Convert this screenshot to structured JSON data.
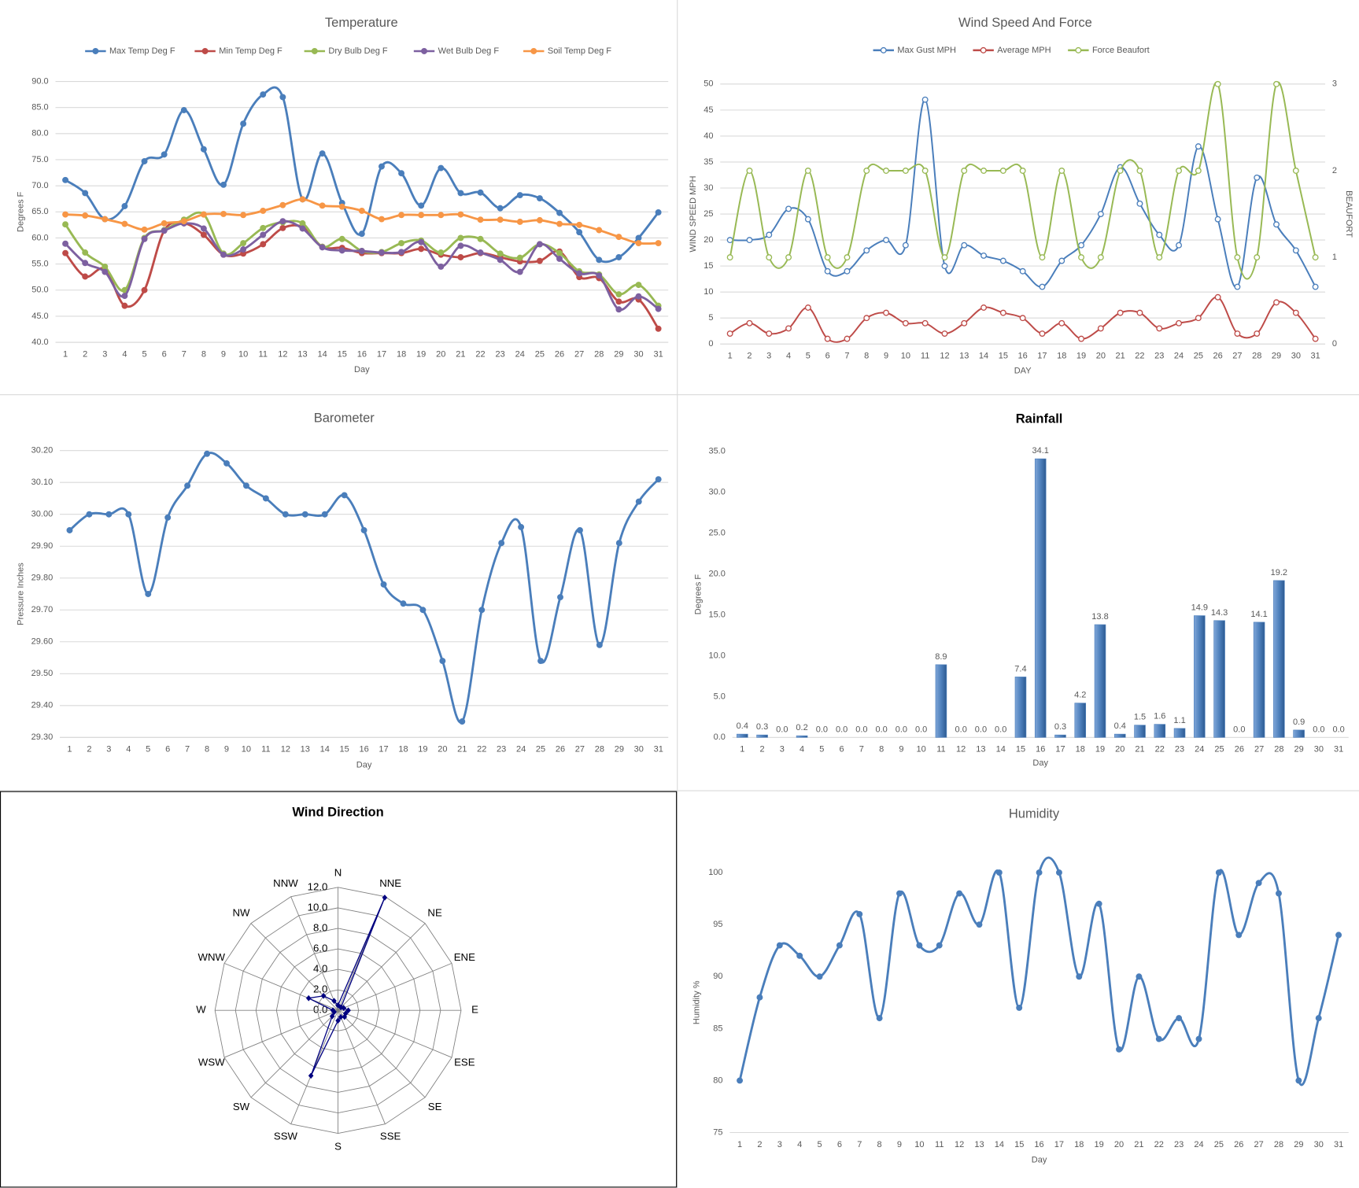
{
  "chart_data": [
    {
      "type": "line",
      "title": "Temperature",
      "x_label": "Day",
      "y_label": "Degrees F",
      "legend": "top",
      "grid": true,
      "smooth": true,
      "markers": "filled",
      "categories": [
        1,
        2,
        3,
        4,
        5,
        6,
        7,
        8,
        9,
        10,
        11,
        12,
        13,
        14,
        15,
        16,
        17,
        18,
        19,
        20,
        21,
        22,
        23,
        24,
        25,
        26,
        27,
        28,
        29,
        30,
        31
      ],
      "ylim": [
        40,
        90
      ],
      "yticks": [
        {
          "value": 40,
          "label": "40.0"
        },
        {
          "value": 45,
          "label": "45.0"
        },
        {
          "value": 50,
          "label": "50.0"
        },
        {
          "value": 55,
          "label": "55.0"
        },
        {
          "value": 60,
          "label": "60.0"
        },
        {
          "value": 65,
          "label": "65.0"
        },
        {
          "value": 70,
          "label": "70.0"
        },
        {
          "value": 75,
          "label": "75.0"
        },
        {
          "value": 80,
          "label": "80.0"
        },
        {
          "value": 85,
          "label": "85.0"
        },
        {
          "value": 90,
          "label": "90.0"
        }
      ],
      "series": [
        {
          "name": "Max Temp Deg F",
          "color": "#4a7ebb",
          "values": [
            71.1,
            68.6,
            63.6,
            66.1,
            74.7,
            76.0,
            84.5,
            77.0,
            70.2,
            81.9,
            87.5,
            87.0,
            67.4,
            76.2,
            66.7,
            60.8,
            73.7,
            72.4,
            66.2,
            73.4,
            68.6,
            68.7,
            65.7,
            68.2,
            67.6,
            64.8,
            61.1,
            55.8,
            56.3,
            60.0,
            64.9
          ]
        },
        {
          "name": "Min Temp Deg F",
          "color": "#be4b48",
          "values": [
            57.1,
            52.6,
            54.0,
            47.0,
            50.0,
            61.4,
            62.8,
            60.6,
            56.8,
            57.0,
            58.8,
            61.9,
            62.1,
            58.3,
            58.1,
            57.1,
            57.1,
            57.1,
            57.9,
            56.8,
            56.3,
            57.1,
            56.3,
            55.5,
            55.6,
            57.4,
            52.5,
            52.3,
            47.8,
            48.2,
            42.6
          ]
        },
        {
          "name": "Dry Bulb Deg F",
          "color": "#98b954",
          "values": [
            62.6,
            57.2,
            54.5,
            50.0,
            60.0,
            61.5,
            63.5,
            64.5,
            57.0,
            59.0,
            61.9,
            63.0,
            62.8,
            58.3,
            59.8,
            57.5,
            57.3,
            59.0,
            59.5,
            57.2,
            60.0,
            59.8,
            57.0,
            56.2,
            58.8,
            57.1,
            53.6,
            53.0,
            49.2,
            51.0,
            47.0
          ]
        },
        {
          "name": "Wet Bulb Deg F",
          "color": "#7d60a0",
          "values": [
            58.9,
            55.2,
            53.5,
            48.9,
            59.8,
            61.4,
            62.8,
            61.8,
            56.8,
            57.8,
            60.6,
            63.2,
            61.8,
            58.2,
            57.6,
            57.5,
            57.2,
            57.3,
            59.2,
            54.5,
            58.5,
            57.2,
            55.8,
            53.5,
            58.8,
            56.0,
            53.2,
            52.8,
            46.3,
            48.8,
            46.4
          ]
        },
        {
          "name": "Soil Temp Deg F",
          "color": "#f79646",
          "values": [
            64.5,
            64.3,
            63.6,
            62.7,
            61.6,
            62.8,
            63.2,
            64.5,
            64.6,
            64.4,
            65.2,
            66.3,
            67.4,
            66.2,
            66.0,
            65.2,
            63.6,
            64.4,
            64.4,
            64.4,
            64.5,
            63.5,
            63.5,
            63.1,
            63.4,
            62.7,
            62.5,
            61.5,
            60.2,
            59.0,
            59.0
          ]
        }
      ]
    },
    {
      "type": "line",
      "title": "Wind Speed And Force",
      "x_label": "DAY",
      "y_label": "WIND SPEED MPH",
      "y2_label": "BEAUFORT",
      "legend": "top",
      "grid": true,
      "smooth": true,
      "markers": "open",
      "categories": [
        1,
        2,
        3,
        4,
        5,
        6,
        7,
        8,
        9,
        10,
        11,
        12,
        13,
        14,
        15,
        16,
        17,
        18,
        19,
        20,
        21,
        22,
        23,
        24,
        25,
        26,
        27,
        28,
        29,
        30,
        31
      ],
      "ylim": [
        0,
        50
      ],
      "yticks": [
        0,
        5,
        10,
        15,
        20,
        25,
        30,
        35,
        40,
        45,
        50
      ],
      "y2lim": [
        0,
        3
      ],
      "y2ticks": [
        0,
        1,
        2,
        3
      ],
      "series": [
        {
          "name": "Max Gust MPH",
          "color": "#4a7ebb",
          "values": [
            20,
            20,
            21,
            26,
            24,
            14,
            14,
            18,
            20,
            19,
            47,
            15,
            19,
            17,
            16,
            14,
            11,
            16,
            19,
            25,
            34,
            27,
            21,
            19,
            38,
            24,
            11,
            32,
            23,
            18,
            11
          ]
        },
        {
          "name": "Average MPH",
          "color": "#be4b48",
          "values": [
            2,
            4,
            2,
            3,
            7,
            1,
            1,
            5,
            6,
            4,
            4,
            2,
            4,
            7,
            6,
            5,
            2,
            4,
            1,
            3,
            6,
            6,
            3,
            4,
            5,
            9,
            2,
            2,
            8,
            6,
            1
          ]
        },
        {
          "name": "Force Beaufort",
          "color": "#98b954",
          "axis": "y2",
          "values": [
            1,
            2,
            1,
            1,
            2,
            1,
            1,
            2,
            2,
            2,
            2,
            1,
            2,
            2,
            2,
            2,
            1,
            2,
            1,
            1,
            2,
            2,
            1,
            2,
            2,
            3,
            1,
            1,
            3,
            2,
            1
          ]
        }
      ]
    },
    {
      "type": "line",
      "title": "Barometer",
      "x_label": "Day",
      "y_label": "Pressure Inches",
      "grid": true,
      "smooth": true,
      "markers": "filled",
      "categories": [
        1,
        2,
        3,
        4,
        5,
        6,
        7,
        8,
        9,
        10,
        11,
        12,
        13,
        14,
        15,
        16,
        17,
        18,
        19,
        20,
        21,
        22,
        23,
        24,
        25,
        26,
        27,
        28,
        29,
        30,
        31
      ],
      "ylim": [
        29.3,
        30.2
      ],
      "yticks": [
        {
          "value": 29.3,
          "label": "29.30"
        },
        {
          "value": 29.4,
          "label": "29.40"
        },
        {
          "value": 29.5,
          "label": "29.50"
        },
        {
          "value": 29.6,
          "label": "29.60"
        },
        {
          "value": 29.7,
          "label": "29.70"
        },
        {
          "value": 29.8,
          "label": "29.80"
        },
        {
          "value": 29.9,
          "label": "29.90"
        },
        {
          "value": 30.0,
          "label": "30.00"
        },
        {
          "value": 30.1,
          "label": "30.10"
        },
        {
          "value": 30.2,
          "label": "30.20"
        }
      ],
      "series": [
        {
          "name": "Barometer",
          "color": "#4a7ebb",
          "values": [
            29.95,
            30.0,
            30.0,
            30.0,
            29.75,
            29.99,
            30.09,
            30.19,
            30.16,
            30.09,
            30.05,
            30.0,
            30.0,
            30.0,
            30.06,
            29.95,
            29.78,
            29.72,
            29.7,
            29.54,
            29.35,
            29.7,
            29.91,
            29.96,
            29.54,
            29.74,
            29.95,
            29.59,
            29.91,
            30.04,
            30.11
          ]
        }
      ]
    },
    {
      "type": "bar",
      "title": "Rainfall",
      "x_label": "Day",
      "y_label": "Degrees F",
      "grid": false,
      "color": "#4f81bd",
      "categories": [
        1,
        2,
        3,
        4,
        5,
        6,
        7,
        8,
        9,
        10,
        11,
        12,
        13,
        14,
        15,
        16,
        17,
        18,
        19,
        20,
        21,
        22,
        23,
        24,
        25,
        26,
        27,
        28,
        29,
        30,
        31
      ],
      "ylim": [
        0,
        35
      ],
      "yticks": [
        {
          "value": 0,
          "label": "0.0"
        },
        {
          "value": 5,
          "label": "5.0"
        },
        {
          "value": 10,
          "label": "10.0"
        },
        {
          "value": 15,
          "label": "15.0"
        },
        {
          "value": 20,
          "label": "20.0"
        },
        {
          "value": 25,
          "label": "25.0"
        },
        {
          "value": 30,
          "label": "30.0"
        },
        {
          "value": 35,
          "label": "35.0"
        }
      ],
      "values": [
        0.4,
        0.3,
        0,
        0.2,
        0,
        0,
        0,
        0,
        0,
        0,
        8.9,
        0,
        0,
        0,
        7.4,
        34.1,
        0.3,
        4.2,
        13.8,
        0.4,
        1.5,
        1.6,
        1.1,
        14.9,
        14.3,
        0,
        14.1,
        19.2,
        0.9,
        0,
        0
      ],
      "value_labels": [
        "0.4",
        "0.3",
        "0.0",
        "0.2",
        "0.0",
        "0.0",
        "0.0",
        "0.0",
        "0.0",
        "0.0",
        "8.9",
        "0.0",
        "0.0",
        "0.0",
        "7.4",
        "34.1",
        "0.3",
        "4.2",
        "13.8",
        "0.4",
        "1.5",
        "1.6",
        "1.1",
        "14.9",
        "14.3",
        "0.0",
        "14.1",
        "19.2",
        "0.9",
        "0.0",
        "0.0"
      ]
    },
    {
      "type": "radar",
      "title": "Wind Direction",
      "color": "#000080",
      "categories": [
        "N",
        "NNE",
        "NE",
        "ENE",
        "E",
        "ESE",
        "SE",
        "SSE",
        "S",
        "SSW",
        "SW",
        "WSW",
        "W",
        "WNW",
        "NW",
        "NNW"
      ],
      "ylim": [
        0,
        12
      ],
      "yticks": [
        {
          "value": 0,
          "label": "0.0"
        },
        {
          "value": 2,
          "label": "2.0"
        },
        {
          "value": 4,
          "label": "4.0"
        },
        {
          "value": 6,
          "label": "6.0"
        },
        {
          "value": 8,
          "label": "8.0"
        },
        {
          "value": 10,
          "label": "10.0"
        },
        {
          "value": 12,
          "label": "12.0"
        }
      ],
      "values": [
        0.5,
        11.9,
        0.4,
        0.6,
        1.0,
        0.8,
        0.9,
        0.7,
        1.0,
        6.9,
        0.8,
        0.4,
        0.5,
        3.1,
        2.0,
        1.0
      ]
    },
    {
      "type": "line",
      "title": "Humidity",
      "x_label": "Day",
      "y_label": "Humidity %",
      "grid": false,
      "smooth": true,
      "markers": "filled",
      "categories": [
        1,
        2,
        3,
        4,
        5,
        6,
        7,
        8,
        9,
        10,
        11,
        12,
        13,
        14,
        15,
        16,
        17,
        18,
        19,
        20,
        21,
        22,
        23,
        24,
        25,
        26,
        27,
        28,
        29,
        30,
        31
      ],
      "ylim": [
        75,
        100
      ],
      "yticks": [
        75,
        80,
        85,
        90,
        95,
        100
      ],
      "series": [
        {
          "name": "Humidity",
          "color": "#4a7ebb",
          "values": [
            80,
            88,
            93,
            92,
            90,
            93,
            96,
            86,
            98,
            93,
            93,
            98,
            95,
            100,
            87,
            100,
            100,
            90,
            97,
            83,
            90,
            84,
            86,
            84,
            100,
            94,
            99,
            98,
            80,
            86,
            94
          ]
        }
      ]
    }
  ]
}
